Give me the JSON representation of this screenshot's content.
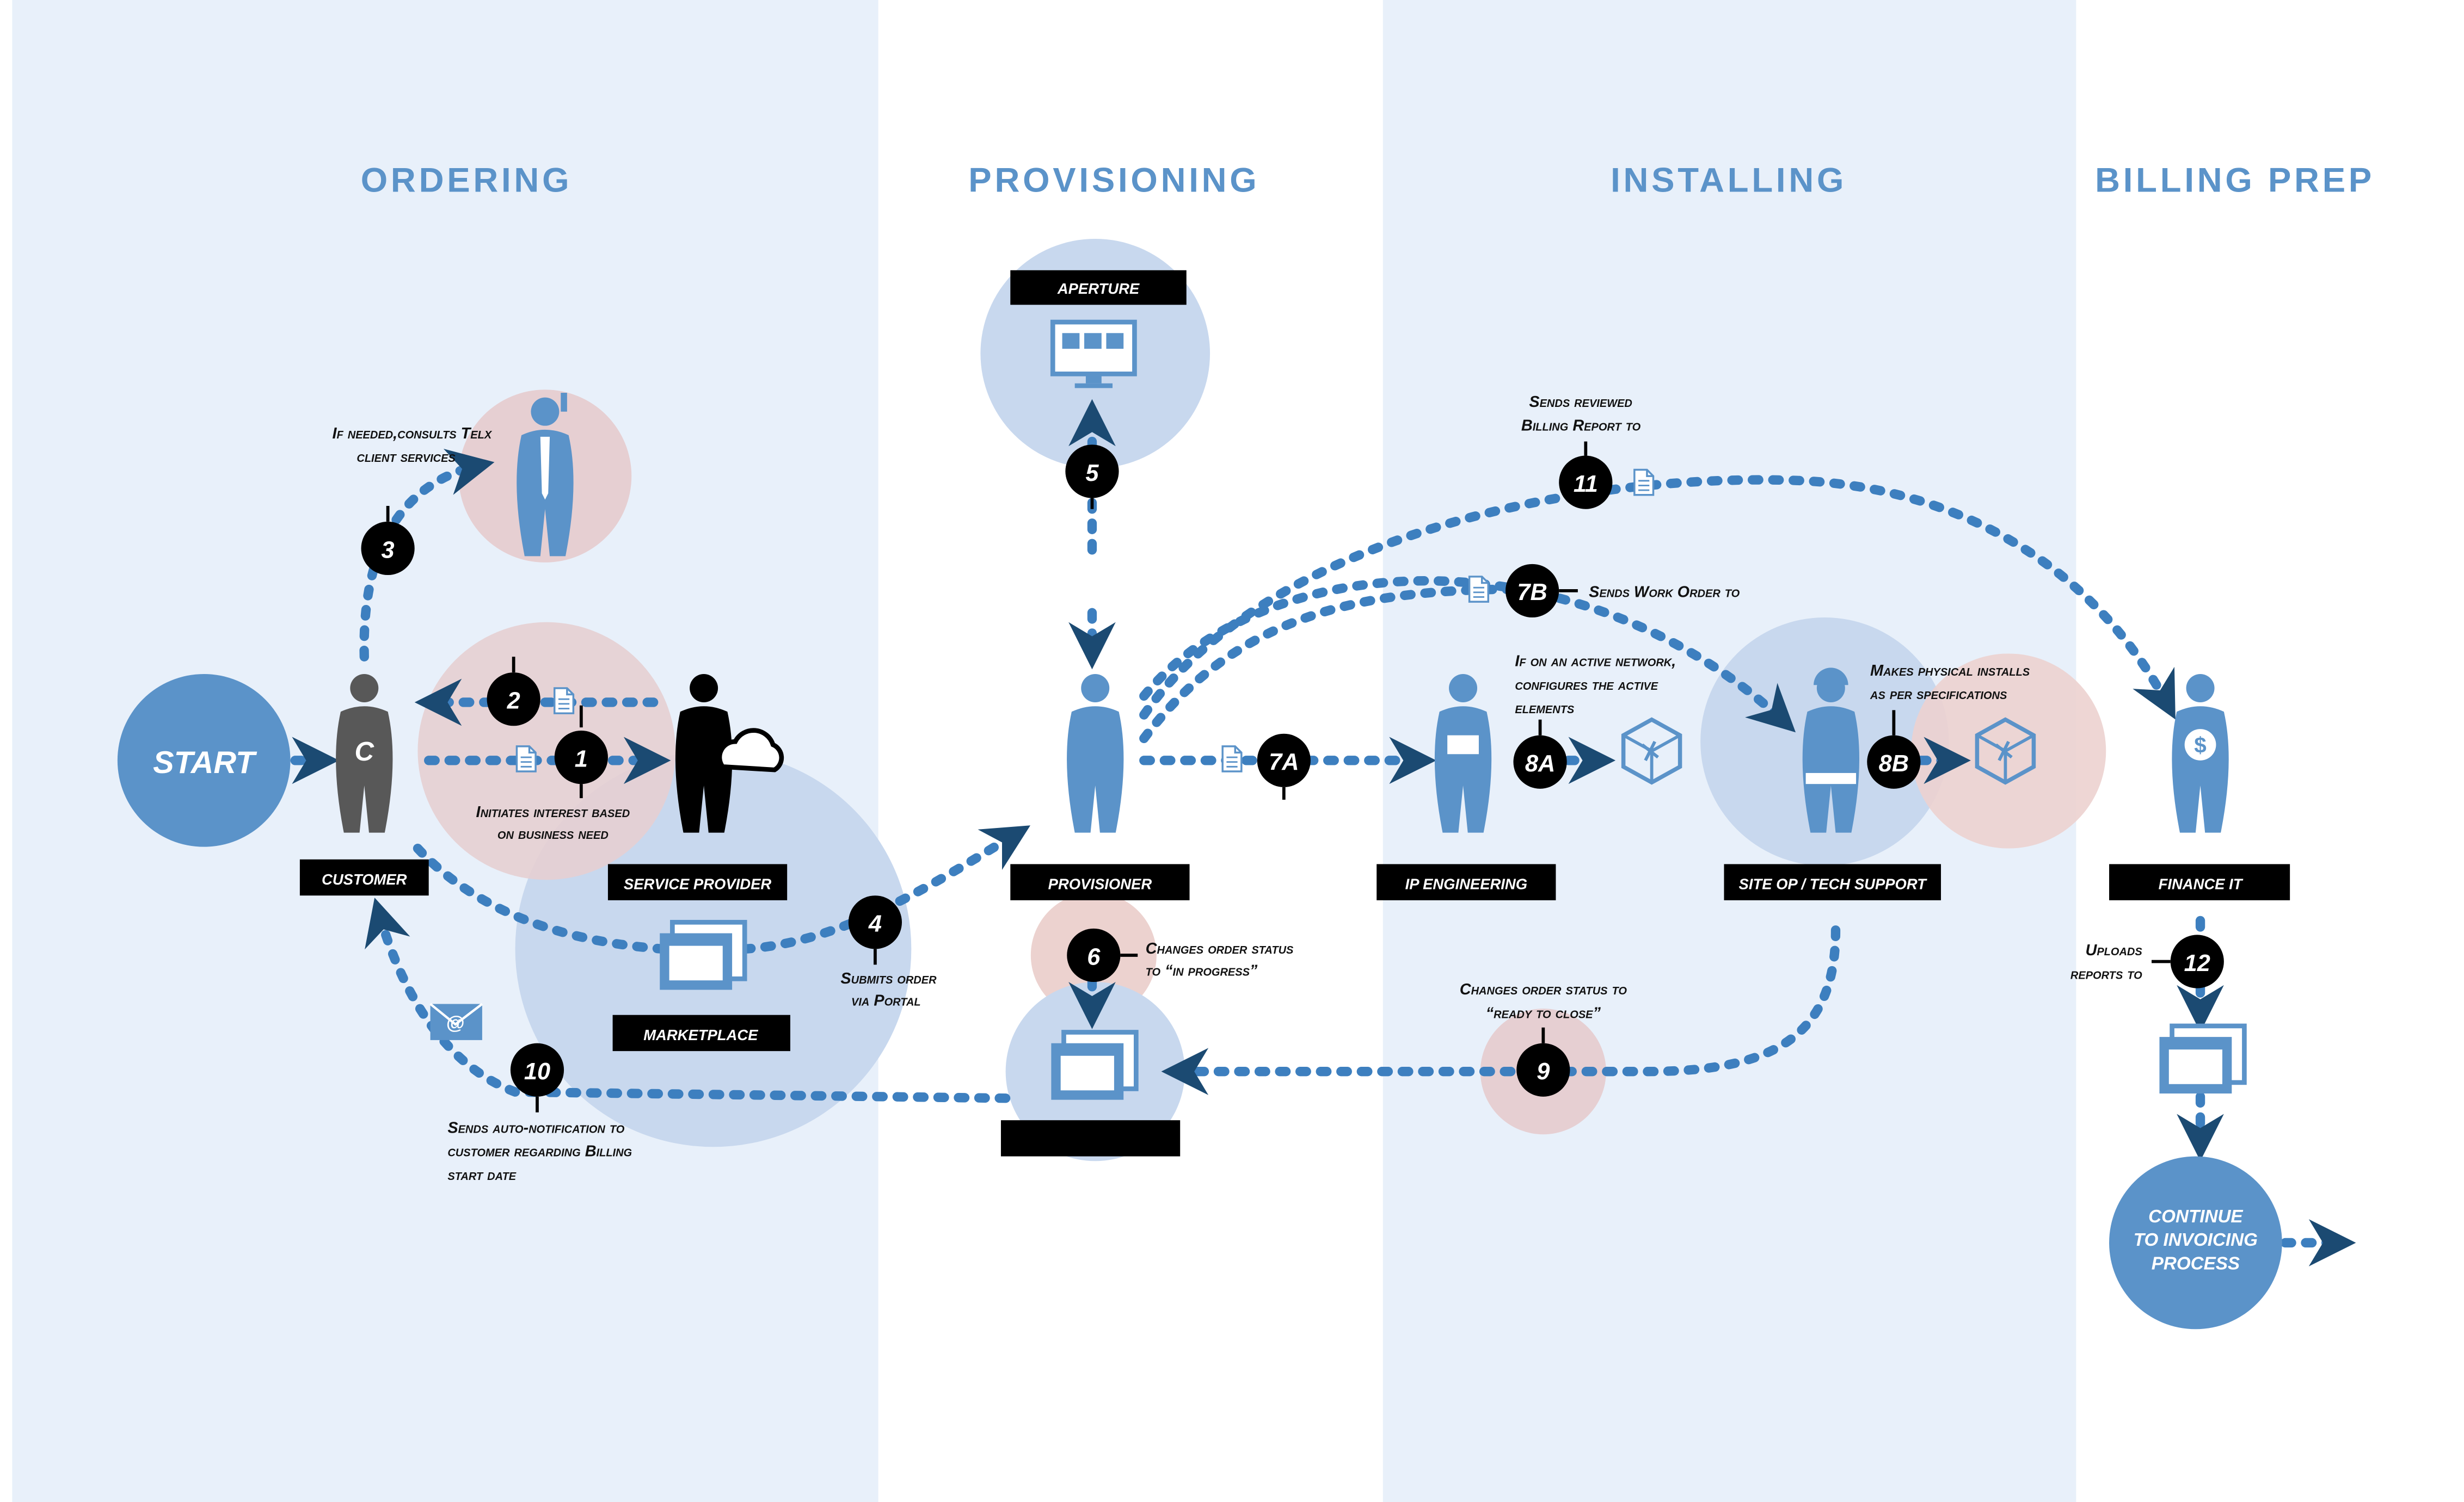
{
  "phases": {
    "ordering": "ORDERING",
    "provisioning": "PROVISIONING",
    "installing": "INSTALLING",
    "billing": "BILLING PREP"
  },
  "terminals": {
    "start": "START",
    "continue": [
      "CONTINUE",
      "TO INVOICING",
      "PROCESS"
    ]
  },
  "customer_initial": "C",
  "actors": {
    "customer": "CUSTOMER",
    "service_provider": "SERVICE PROVIDER",
    "marketplace": "MARKETPLACE",
    "aperture": "APERTURE",
    "provisioner": "PROVISIONER",
    "ip_engineering": "IP ENGINEERING",
    "site_op": "SITE OP / TECH SUPPORT",
    "finance_it": "FINANCE IT"
  },
  "steps": {
    "s1": "1",
    "s2": "2",
    "s3": "3",
    "s4": "4",
    "s5": "5",
    "s6": "6",
    "s7a": "7A",
    "s7b": "7B",
    "s8a": "8A",
    "s8b": "8B",
    "s9": "9",
    "s10": "10",
    "s11": "11",
    "s12": "12"
  },
  "notes": {
    "n1": [
      "Initiates interest based",
      "on business need"
    ],
    "n3": [
      "If needed,consults Telx",
      "client services"
    ],
    "n4": [
      "Submits order",
      "via Portal"
    ],
    "n6": [
      "Changes order status",
      "to “in progress”"
    ],
    "n7b": "Sends Work Order to",
    "n8a": [
      "If on an active network,",
      "configures the active",
      "elements"
    ],
    "n8b": [
      "Makes physical installs",
      "as per specifications"
    ],
    "n9": [
      "Changes order status to",
      "“ready to close”"
    ],
    "n10": [
      "Sends auto-notification to",
      "customer regarding Billing",
      "start date"
    ],
    "n11": [
      "Sends reviewed",
      "Billing Report to"
    ],
    "n12": [
      "Uploads",
      "reports to"
    ]
  },
  "colors": {
    "band": "#e8f0fa",
    "phase_title": "#5b93c9",
    "figure_blue": "#5b93c9",
    "figure_gray": "#585858",
    "flow_dots": "#3d7fbf",
    "arrow_head": "#1b4a72",
    "halo_blue": "#c8d8ee",
    "halo_pink": "#e6cfd2",
    "label_bg": "#000000"
  }
}
